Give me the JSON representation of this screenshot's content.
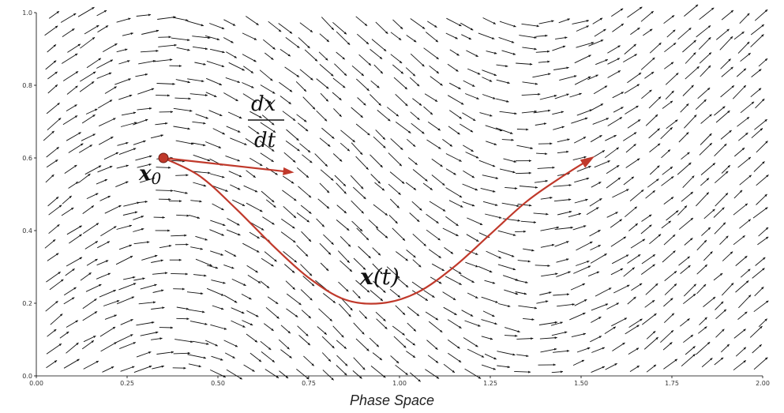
{
  "chart_data": {
    "type": "quiver",
    "xlabel": "Phase Space",
    "ylabel": "",
    "title": "",
    "xlim": [
      0.0,
      2.0
    ],
    "ylim": [
      0.0,
      1.0
    ],
    "x_ticks": [
      "0.00",
      "0.25",
      "0.50",
      "0.75",
      "1.00",
      "1.25",
      "1.50",
      "1.75",
      "2.00"
    ],
    "y_ticks": [
      "0.0",
      "0.2",
      "0.4",
      "0.6",
      "0.8",
      "1.0"
    ],
    "grid": false,
    "vector_field": {
      "description_formula": "direction along curve y = 0.4 + 0.2*cos(pi*x) family",
      "grid_nx": 40,
      "grid_ny": 24
    },
    "trajectory": {
      "label_base": "x",
      "label_suffix": "(t)",
      "points": [
        [
          0.35,
          0.6
        ],
        [
          0.45,
          0.55
        ],
        [
          0.55,
          0.46
        ],
        [
          0.65,
          0.36
        ],
        [
          0.75,
          0.27
        ],
        [
          0.85,
          0.21
        ],
        [
          0.95,
          0.2
        ],
        [
          1.05,
          0.23
        ],
        [
          1.15,
          0.3
        ],
        [
          1.25,
          0.39
        ],
        [
          1.35,
          0.48
        ],
        [
          1.45,
          0.55
        ],
        [
          1.53,
          0.6
        ]
      ],
      "color": "#c0392b"
    },
    "initial_point": {
      "x": 0.35,
      "y": 0.6,
      "label_base": "x",
      "label_sub": "0",
      "color": "#c0392b"
    },
    "velocity_vector": {
      "from": [
        0.35,
        0.6
      ],
      "to": [
        0.71,
        0.56
      ],
      "label_numerator": "dx",
      "label_denominator": "dt",
      "color": "#c0392b"
    }
  }
}
